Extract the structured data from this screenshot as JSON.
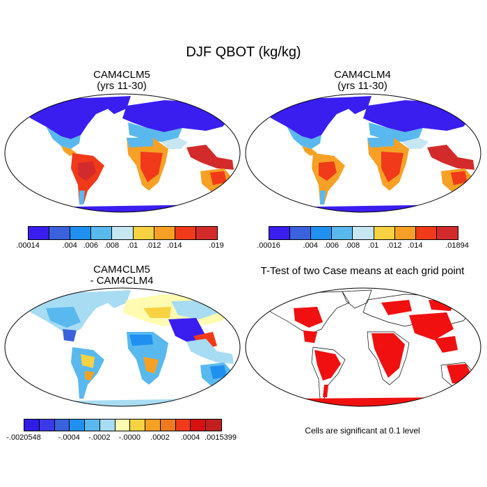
{
  "title": "DJF QBOT (kg/kg)",
  "panels": [
    {
      "id": "p1",
      "title_line1": "CAM4CLM5",
      "title_line2": "(yrs 11-30)"
    },
    {
      "id": "p2",
      "title_line1": "CAM4CLM4",
      "title_line2": "(yrs 11-30)"
    },
    {
      "id": "p3",
      "title_line1": "CAM4CLM5",
      "title_line2": "- CAM4CLM4"
    },
    {
      "id": "p4",
      "title_line1": "T-Test of two Case means at each grid point",
      "title_line2": ""
    }
  ],
  "colorbar1": {
    "colors": [
      "#3a1ef0",
      "#3a62dd",
      "#1f90f0",
      "#59b9ee",
      "#c6e6f2",
      "#f7d343",
      "#f6a125",
      "#f03a1a",
      "#d32b2b"
    ],
    "labels": [
      ".00014",
      ".004",
      ".006",
      ".008",
      ".01",
      ".012",
      ".014",
      ".019"
    ]
  },
  "colorbar2": {
    "colors": [
      "#3a1ef0",
      "#3a62dd",
      "#1f90f0",
      "#59b9ee",
      "#c6e6f2",
      "#f7d343",
      "#f6a125",
      "#f03a1a",
      "#d32b2b"
    ],
    "labels": [
      ".00016",
      ".004",
      ".006",
      ".008",
      ".01",
      ".012",
      ".014",
      ".01894"
    ]
  },
  "colorbar3": {
    "colors": [
      "#2f1de6",
      "#3b3ae8",
      "#3a62dd",
      "#1f90f0",
      "#59b9ee",
      "#a8dcf2",
      "#fffbb0",
      "#f7d343",
      "#f6a125",
      "#f07a1e",
      "#f03a1a",
      "#d81010",
      "#c22020"
    ],
    "labels": [
      "-.0020548",
      "-.0004",
      "-.0002",
      "-.0000",
      ".0002",
      ".0004",
      ".0015399"
    ]
  },
  "note": "Cells are significant at 0.1 level"
}
